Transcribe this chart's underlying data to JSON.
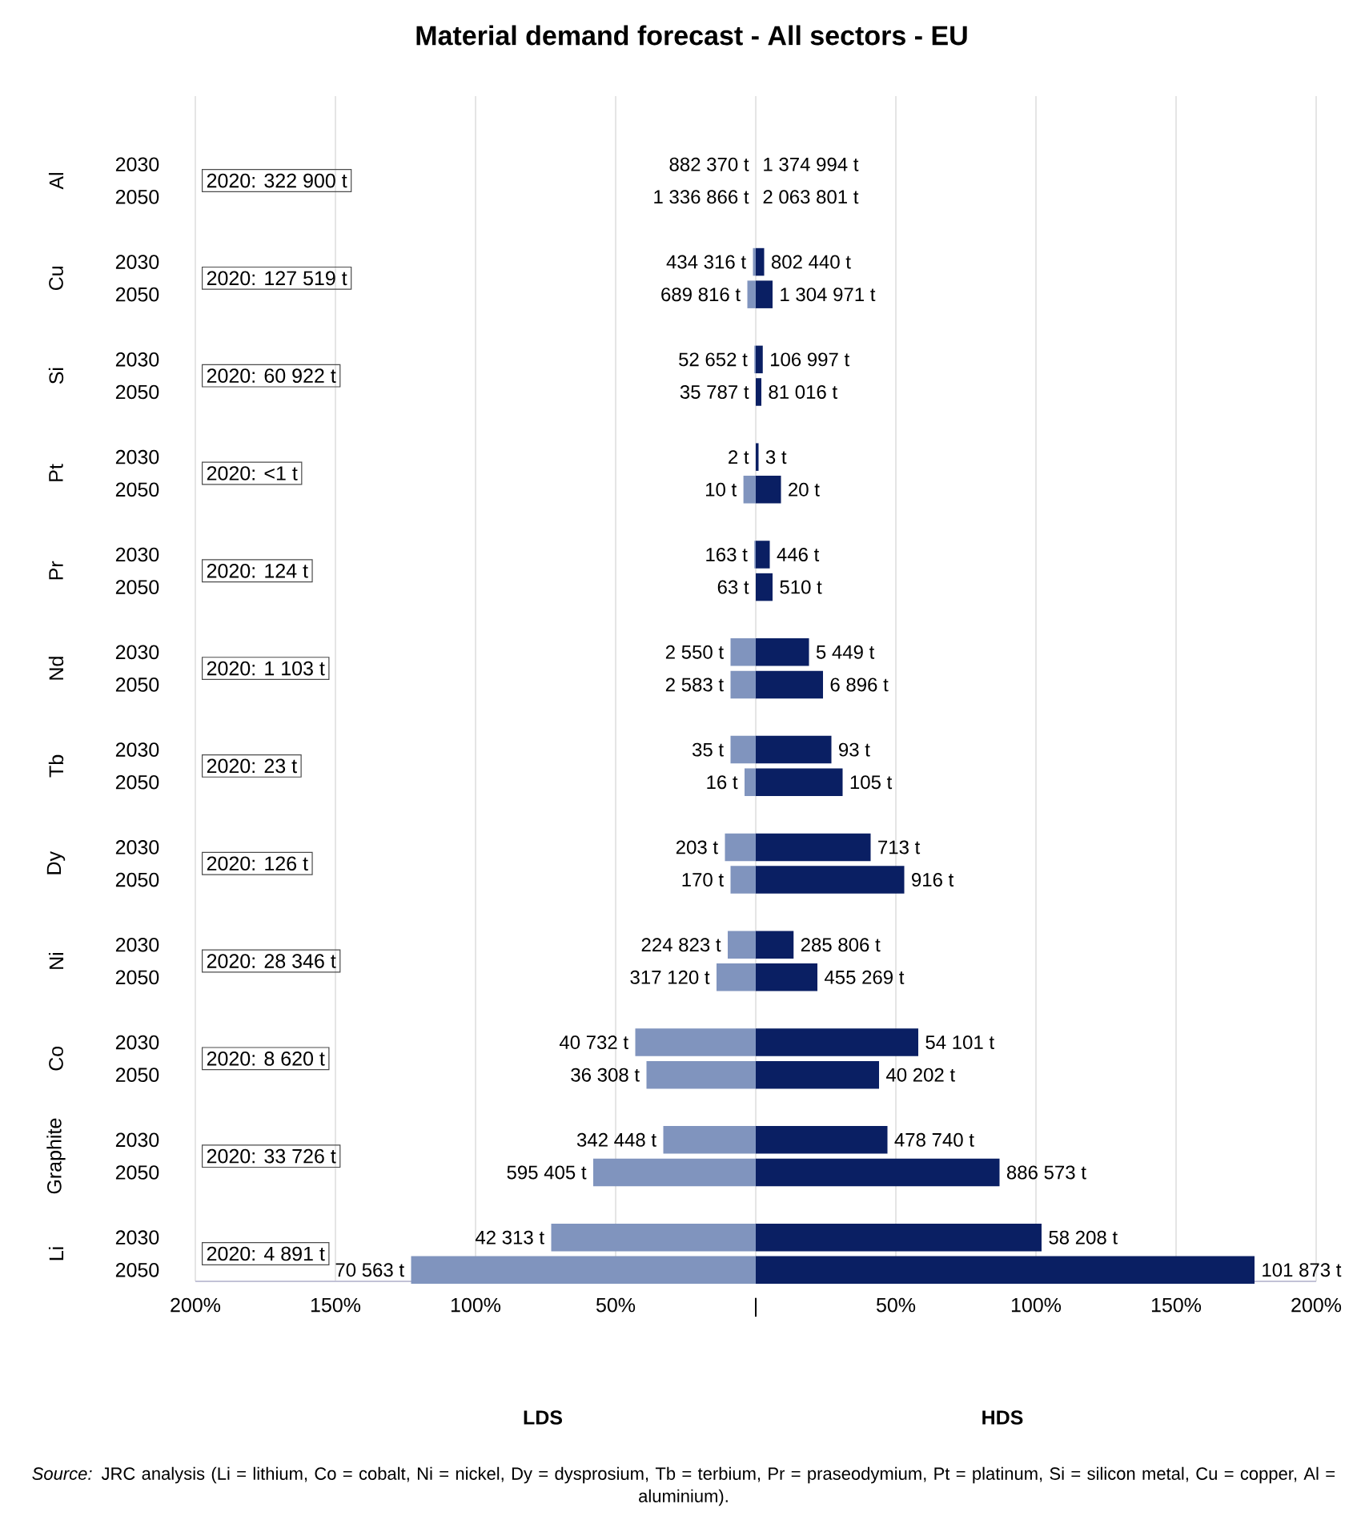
{
  "chart_data": {
    "type": "bar",
    "orientation": "horizontal",
    "title": "Material demand forecast - All sectors - EU",
    "categories": [
      "2030",
      "2050",
      null,
      "2030",
      "2050",
      null,
      "2030",
      "2050",
      null,
      "2030",
      "2050",
      null,
      "2030",
      "2050",
      null,
      "2030",
      "2050",
      null,
      "2030",
      "2050",
      null,
      "2030",
      "2050",
      null,
      "2030",
      "2050",
      null,
      "2030",
      "2050",
      null,
      "2030",
      "2050",
      null,
      "2030",
      "2050"
    ],
    "series": [
      {
        "color": "#8094be",
        "values": [
          null,
          null,
          null,
          -1,
          -3,
          null,
          -0.5,
          null,
          null,
          null,
          -4.4,
          null,
          -0.5,
          null,
          null,
          -9,
          -9,
          null,
          -9,
          -4,
          null,
          -11,
          -9,
          null,
          -10,
          -14,
          null,
          -43,
          -39,
          null,
          -33,
          -58,
          null,
          -73,
          -123
        ]
      },
      {
        "color": "#0a1f63",
        "values": [
          null,
          null,
          null,
          3,
          6,
          null,
          2.5,
          2,
          null,
          1,
          9,
          null,
          5,
          6,
          null,
          19,
          24,
          null,
          27,
          31,
          null,
          41,
          53,
          null,
          13.5,
          22,
          null,
          58,
          44,
          null,
          47,
          87,
          null,
          102,
          178
        ]
      }
    ],
    "xlim": [
      -200,
      200
    ],
    "xticks": [
      {
        "value": -200,
        "label": "200%"
      },
      {
        "value": -150,
        "label": "150%"
      },
      {
        "value": -100,
        "label": "100%"
      },
      {
        "value": -50,
        "label": "50%"
      },
      {
        "value": 0,
        "label": "|"
      },
      {
        "value": 50,
        "label": "50%"
      },
      {
        "value": 100,
        "label": "100%"
      },
      {
        "value": 150,
        "label": "150%"
      },
      {
        "value": 200,
        "label": "200%"
      }
    ],
    "grid": "x",
    "annotations": [
      "Al",
      "Cu",
      "Si",
      "Pt",
      "Pr",
      "Nd",
      "Tb",
      "Dy",
      "Ni",
      "Co",
      "Graphite",
      "Li",
      "2020:  322 900 t",
      "2020:  127 519 t",
      "2020:  60 922 t",
      "2020: <1 t",
      "2020:    124 t",
      "2020:  1 103 t",
      "2020:    23 t",
      "2020:    126 t",
      "2020:  28 346 t",
      "2020:  8 620 t",
      "2020:  33 726 t",
      "2020:  4 891 t",
      "882 370 t",
      "1 374 994 t",
      "1 336 866 t",
      "2 063 801 t",
      "434 316 t",
      "802 440 t",
      "689 816 t",
      "1 304 971 t",
      "52 652 t",
      "106 997 t",
      "35 787 t",
      "81 016 t",
      "2 t",
      "3 t",
      "10 t",
      "20 t",
      "163 t",
      "446 t",
      "63 t",
      "510 t",
      "2 550 t",
      "5 449 t",
      "2 583 t",
      "6 896 t",
      "35 t",
      "93 t",
      "16 t",
      "105 t",
      "203 t",
      "713 t",
      "170 t",
      "916 t",
      "224 823 t",
      "285 806 t",
      "317 120 t",
      "455 269 t",
      "40 732 t",
      "54 101 t",
      "36 308 t",
      "40 202 t",
      "342 448 t",
      "478 740 t",
      "595 405 t",
      "886 573 t",
      "42 313 t",
      "58 208 t",
      "70 563 t",
      "101 873 t",
      "LDS",
      "HDS",
      "*Source:* JRC analysis (Li = lithium, Co = cobalt, Ni = nickel, Dy = dysprosium, Tb = terbium, Pr = praseodymium, Pt = platinum, Si = silicon metal, Cu = copper, Al = aluminium)."
    ]
  }
}
